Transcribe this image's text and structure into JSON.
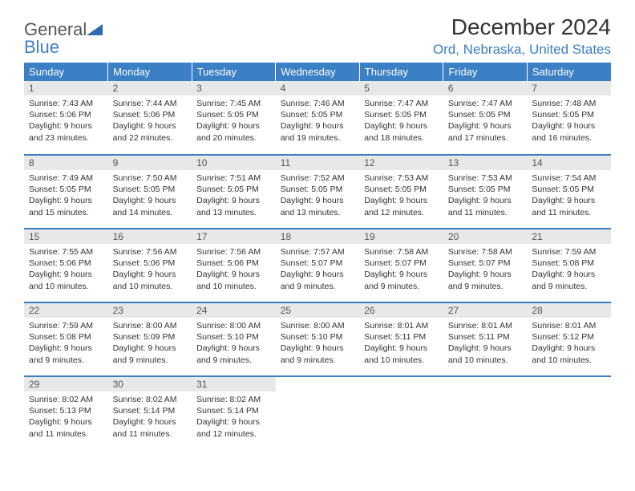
{
  "logo": {
    "word1": "General",
    "word2": "Blue"
  },
  "title": "December 2024",
  "location": "Ord, Nebraska, United States",
  "colors": {
    "accent": "#3b7fc4",
    "header_bg": "#3b7fc4",
    "header_text": "#ffffff",
    "daynum_bg": "#e8e8e8",
    "body_text": "#333333",
    "background": "#ffffff"
  },
  "weekdays": [
    "Sunday",
    "Monday",
    "Tuesday",
    "Wednesday",
    "Thursday",
    "Friday",
    "Saturday"
  ],
  "days": [
    {
      "n": "1",
      "sunrise": "Sunrise: 7:43 AM",
      "sunset": "Sunset: 5:06 PM",
      "day1": "Daylight: 9 hours",
      "day2": "and 23 minutes."
    },
    {
      "n": "2",
      "sunrise": "Sunrise: 7:44 AM",
      "sunset": "Sunset: 5:06 PM",
      "day1": "Daylight: 9 hours",
      "day2": "and 22 minutes."
    },
    {
      "n": "3",
      "sunrise": "Sunrise: 7:45 AM",
      "sunset": "Sunset: 5:05 PM",
      "day1": "Daylight: 9 hours",
      "day2": "and 20 minutes."
    },
    {
      "n": "4",
      "sunrise": "Sunrise: 7:46 AM",
      "sunset": "Sunset: 5:05 PM",
      "day1": "Daylight: 9 hours",
      "day2": "and 19 minutes."
    },
    {
      "n": "5",
      "sunrise": "Sunrise: 7:47 AM",
      "sunset": "Sunset: 5:05 PM",
      "day1": "Daylight: 9 hours",
      "day2": "and 18 minutes."
    },
    {
      "n": "6",
      "sunrise": "Sunrise: 7:47 AM",
      "sunset": "Sunset: 5:05 PM",
      "day1": "Daylight: 9 hours",
      "day2": "and 17 minutes."
    },
    {
      "n": "7",
      "sunrise": "Sunrise: 7:48 AM",
      "sunset": "Sunset: 5:05 PM",
      "day1": "Daylight: 9 hours",
      "day2": "and 16 minutes."
    },
    {
      "n": "8",
      "sunrise": "Sunrise: 7:49 AM",
      "sunset": "Sunset: 5:05 PM",
      "day1": "Daylight: 9 hours",
      "day2": "and 15 minutes."
    },
    {
      "n": "9",
      "sunrise": "Sunrise: 7:50 AM",
      "sunset": "Sunset: 5:05 PM",
      "day1": "Daylight: 9 hours",
      "day2": "and 14 minutes."
    },
    {
      "n": "10",
      "sunrise": "Sunrise: 7:51 AM",
      "sunset": "Sunset: 5:05 PM",
      "day1": "Daylight: 9 hours",
      "day2": "and 13 minutes."
    },
    {
      "n": "11",
      "sunrise": "Sunrise: 7:52 AM",
      "sunset": "Sunset: 5:05 PM",
      "day1": "Daylight: 9 hours",
      "day2": "and 13 minutes."
    },
    {
      "n": "12",
      "sunrise": "Sunrise: 7:53 AM",
      "sunset": "Sunset: 5:05 PM",
      "day1": "Daylight: 9 hours",
      "day2": "and 12 minutes."
    },
    {
      "n": "13",
      "sunrise": "Sunrise: 7:53 AM",
      "sunset": "Sunset: 5:05 PM",
      "day1": "Daylight: 9 hours",
      "day2": "and 11 minutes."
    },
    {
      "n": "14",
      "sunrise": "Sunrise: 7:54 AM",
      "sunset": "Sunset: 5:05 PM",
      "day1": "Daylight: 9 hours",
      "day2": "and 11 minutes."
    },
    {
      "n": "15",
      "sunrise": "Sunrise: 7:55 AM",
      "sunset": "Sunset: 5:06 PM",
      "day1": "Daylight: 9 hours",
      "day2": "and 10 minutes."
    },
    {
      "n": "16",
      "sunrise": "Sunrise: 7:56 AM",
      "sunset": "Sunset: 5:06 PM",
      "day1": "Daylight: 9 hours",
      "day2": "and 10 minutes."
    },
    {
      "n": "17",
      "sunrise": "Sunrise: 7:56 AM",
      "sunset": "Sunset: 5:06 PM",
      "day1": "Daylight: 9 hours",
      "day2": "and 10 minutes."
    },
    {
      "n": "18",
      "sunrise": "Sunrise: 7:57 AM",
      "sunset": "Sunset: 5:07 PM",
      "day1": "Daylight: 9 hours",
      "day2": "and 9 minutes."
    },
    {
      "n": "19",
      "sunrise": "Sunrise: 7:58 AM",
      "sunset": "Sunset: 5:07 PM",
      "day1": "Daylight: 9 hours",
      "day2": "and 9 minutes."
    },
    {
      "n": "20",
      "sunrise": "Sunrise: 7:58 AM",
      "sunset": "Sunset: 5:07 PM",
      "day1": "Daylight: 9 hours",
      "day2": "and 9 minutes."
    },
    {
      "n": "21",
      "sunrise": "Sunrise: 7:59 AM",
      "sunset": "Sunset: 5:08 PM",
      "day1": "Daylight: 9 hours",
      "day2": "and 9 minutes."
    },
    {
      "n": "22",
      "sunrise": "Sunrise: 7:59 AM",
      "sunset": "Sunset: 5:08 PM",
      "day1": "Daylight: 9 hours",
      "day2": "and 9 minutes."
    },
    {
      "n": "23",
      "sunrise": "Sunrise: 8:00 AM",
      "sunset": "Sunset: 5:09 PM",
      "day1": "Daylight: 9 hours",
      "day2": "and 9 minutes."
    },
    {
      "n": "24",
      "sunrise": "Sunrise: 8:00 AM",
      "sunset": "Sunset: 5:10 PM",
      "day1": "Daylight: 9 hours",
      "day2": "and 9 minutes."
    },
    {
      "n": "25",
      "sunrise": "Sunrise: 8:00 AM",
      "sunset": "Sunset: 5:10 PM",
      "day1": "Daylight: 9 hours",
      "day2": "and 9 minutes."
    },
    {
      "n": "26",
      "sunrise": "Sunrise: 8:01 AM",
      "sunset": "Sunset: 5:11 PM",
      "day1": "Daylight: 9 hours",
      "day2": "and 10 minutes."
    },
    {
      "n": "27",
      "sunrise": "Sunrise: 8:01 AM",
      "sunset": "Sunset: 5:11 PM",
      "day1": "Daylight: 9 hours",
      "day2": "and 10 minutes."
    },
    {
      "n": "28",
      "sunrise": "Sunrise: 8:01 AM",
      "sunset": "Sunset: 5:12 PM",
      "day1": "Daylight: 9 hours",
      "day2": "and 10 minutes."
    },
    {
      "n": "29",
      "sunrise": "Sunrise: 8:02 AM",
      "sunset": "Sunset: 5:13 PM",
      "day1": "Daylight: 9 hours",
      "day2": "and 11 minutes."
    },
    {
      "n": "30",
      "sunrise": "Sunrise: 8:02 AM",
      "sunset": "Sunset: 5:14 PM",
      "day1": "Daylight: 9 hours",
      "day2": "and 11 minutes."
    },
    {
      "n": "31",
      "sunrise": "Sunrise: 8:02 AM",
      "sunset": "Sunset: 5:14 PM",
      "day1": "Daylight: 9 hours",
      "day2": "and 12 minutes."
    }
  ]
}
